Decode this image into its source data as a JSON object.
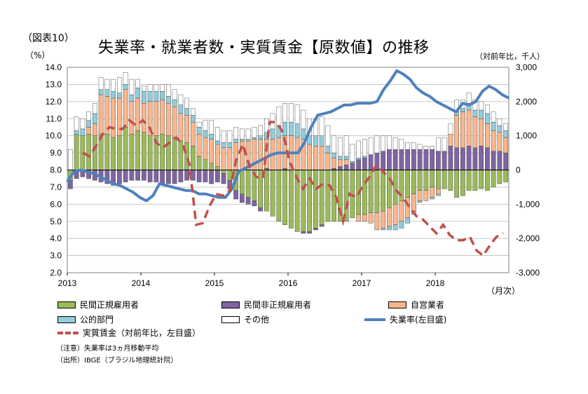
{
  "figure_no": "（図表10）",
  "title": "失業率・就業者数・実質賃金【原数値】の推移",
  "left_unit": "（%）",
  "right_unit": "（対前年比，千人）",
  "month_label": "（月次）",
  "notes": [
    "（注意）失業率は3ヵ月移動平均",
    "（出所）IBGE（ブラジル地理統計院）"
  ],
  "colors": {
    "private_formal": "#9bbb59",
    "private_informal": "#8064a2",
    "self_employed": "#f9b68c",
    "public": "#92cddc",
    "other": "#ffffff",
    "unemployment": "#4f81bd",
    "real_wage": "#c0504d"
  },
  "chart_data": {
    "type": "bar+line",
    "x_ticks": [
      "2013",
      "2014",
      "2015",
      "2016",
      "2017",
      "2018"
    ],
    "left_axis": {
      "ticks": [
        "14.0",
        "13.0",
        "12.0",
        "11.0",
        "10.0",
        "9.0",
        "8.0",
        "7.0",
        "6.0",
        "5.0",
        "4.0",
        "3.0",
        "2.0"
      ],
      "ylim": [
        2,
        14
      ]
    },
    "right_axis": {
      "ticks": [
        "3,000",
        "2,000",
        "1,000",
        "0",
        "-1,000",
        "-2,000",
        "-3,000"
      ],
      "ylim": [
        -3000,
        3000
      ]
    },
    "legend": [
      {
        "key": "private_formal",
        "label": "民間正規雇用者",
        "kind": "bar"
      },
      {
        "key": "private_informal",
        "label": "民間非正規雇用者",
        "kind": "bar"
      },
      {
        "key": "self_employed",
        "label": "自営業者",
        "kind": "bar"
      },
      {
        "key": "public",
        "label": "公的部門",
        "kind": "bar"
      },
      {
        "key": "other",
        "label": "その他",
        "kind": "bar"
      },
      {
        "key": "unemployment",
        "label": "失業率(左目盛)",
        "kind": "line"
      },
      {
        "key": "real_wage",
        "label": "実質賃金（対前年比，左目盛）",
        "kind": "dash"
      }
    ],
    "series_bars": {
      "private_formal": [
        -300,
        1050,
        1000,
        1050,
        1000,
        1050,
        1050,
        950,
        1000,
        1250,
        1050,
        1150,
        1100,
        1000,
        1000,
        1050,
        1000,
        950,
        850,
        800,
        700,
        400,
        300,
        200,
        100,
        -100,
        -300,
        -600,
        -700,
        -800,
        -900,
        -1100,
        -1200,
        -1350,
        -1500,
        -1600,
        -1700,
        -1800,
        -1800,
        -1800,
        -1700,
        -1600,
        -1500,
        -1500,
        -1500,
        -1500,
        -1400,
        -1300,
        -1300,
        -1250,
        -1250,
        -1200,
        -1100,
        -1000,
        -900,
        -800,
        -700,
        -600,
        -600,
        -500,
        -550,
        -550,
        -600,
        -800,
        -750,
        -600,
        -600,
        -550,
        -600,
        -500,
        -400,
        -350
      ],
      "private_informal": [
        -250,
        -250,
        -200,
        -250,
        -300,
        -350,
        -400,
        -450,
        -400,
        -350,
        -300,
        -300,
        -300,
        -350,
        -350,
        -400,
        -400,
        -400,
        -350,
        -300,
        -300,
        -350,
        -350,
        -400,
        -350,
        -300,
        -250,
        -250,
        -250,
        -200,
        -150,
        -100,
        50,
        0,
        0,
        50,
        0,
        0,
        -50,
        -50,
        -50,
        -50,
        0,
        50,
        100,
        150,
        200,
        300,
        350,
        450,
        500,
        550,
        600,
        600,
        600,
        600,
        600,
        600,
        600,
        600,
        550,
        550,
        700,
        650,
        650,
        700,
        650,
        700,
        650,
        550,
        550,
        500
      ],
      "self_employed": [
        0,
        0,
        0,
        200,
        350,
        1150,
        1100,
        1150,
        1100,
        1100,
        950,
        950,
        850,
        1000,
        1000,
        1000,
        950,
        900,
        800,
        800,
        700,
        650,
        650,
        700,
        650,
        650,
        650,
        800,
        850,
        850,
        900,
        900,
        850,
        900,
        950,
        950,
        1000,
        950,
        900,
        750,
        700,
        700,
        500,
        300,
        200,
        150,
        0,
        -200,
        -200,
        -300,
        -500,
        -500,
        -550,
        -600,
        -600,
        -600,
        -500,
        -300,
        -300,
        -300,
        -150,
        0,
        350,
        950,
        1050,
        1050,
        900,
        800,
        700,
        600,
        550,
        450
      ],
      "public": [
        0,
        100,
        200,
        200,
        300,
        150,
        200,
        200,
        150,
        150,
        200,
        300,
        350,
        300,
        300,
        250,
        200,
        200,
        250,
        200,
        200,
        200,
        200,
        150,
        100,
        150,
        150,
        100,
        50,
        50,
        50,
        100,
        200,
        300,
        350,
        400,
        400,
        400,
        300,
        250,
        300,
        300,
        200,
        150,
        100,
        100,
        50,
        50,
        50,
        0,
        0,
        -50,
        -100,
        -150,
        -200,
        -150,
        -100,
        -50,
        0,
        -50,
        -50,
        0,
        0,
        100,
        100,
        200,
        200,
        250,
        300,
        250,
        200,
        200
      ],
      "other": [
        600,
        400,
        300,
        250,
        300,
        350,
        300,
        350,
        450,
        350,
        450,
        250,
        150,
        200,
        200,
        200,
        350,
        300,
        300,
        300,
        200,
        150,
        300,
        400,
        400,
        350,
        350,
        350,
        300,
        300,
        300,
        300,
        400,
        450,
        550,
        550,
        550,
        550,
        550,
        500,
        500,
        550,
        600,
        500,
        550,
        600,
        500,
        500,
        500,
        500,
        500,
        450,
        400,
        350,
        300,
        200,
        200,
        150,
        100,
        100,
        400,
        400,
        300,
        350,
        250,
        300,
        300,
        250,
        250,
        300,
        200,
        200
      ]
    },
    "unemployment_rate": [
      7.3,
      7.9,
      8.0,
      7.9,
      7.8,
      7.6,
      7.4,
      7.2,
      7.1,
      6.9,
      6.7,
      6.4,
      6.2,
      6.5,
      7.2,
      7.1,
      7.0,
      6.9,
      6.8,
      6.8,
      6.6,
      6.6,
      6.5,
      6.4,
      6.4,
      6.9,
      7.9,
      8.1,
      8.3,
      8.5,
      8.7,
      8.9,
      9.0,
      9.0,
      9.0,
      9.0,
      9.6,
      10.5,
      11.2,
      11.3,
      11.4,
      11.6,
      11.8,
      11.8,
      11.9,
      11.9,
      11.9,
      12.0,
      12.7,
      13.2,
      13.8,
      13.6,
      13.3,
      12.8,
      12.5,
      12.3,
      12.0,
      11.8,
      11.6,
      11.4,
      11.9,
      11.8,
      12.0,
      12.6,
      12.9,
      12.7,
      12.4,
      12.2
    ],
    "real_wage_yoy": [
      9.0,
      8.8,
      9.4,
      10.1,
      10.5,
      10.4,
      10.4,
      10.9,
      10.6,
      10.9,
      10.5,
      9.6,
      9.3,
      9.6,
      9.9,
      9.5,
      8.3,
      4.8,
      4.9,
      5.9,
      6.6,
      6.5,
      6.8,
      8.6,
      9.5,
      8.2,
      7.6,
      7.5,
      10.8,
      10.8,
      10.2,
      8.5,
      7.6,
      6.9,
      7.5,
      6.9,
      7.2,
      7.1,
      6.4,
      5.0,
      6.6,
      6.4,
      7.1,
      7.6,
      8.3,
      7.9,
      7.5,
      6.8,
      6.4,
      5.8,
      5.3,
      5.1,
      4.7,
      4.3,
      4.8,
      4.2,
      3.9,
      3.9,
      4.1,
      3.3,
      3.0,
      3.6,
      4.1,
      4.3
    ]
  }
}
